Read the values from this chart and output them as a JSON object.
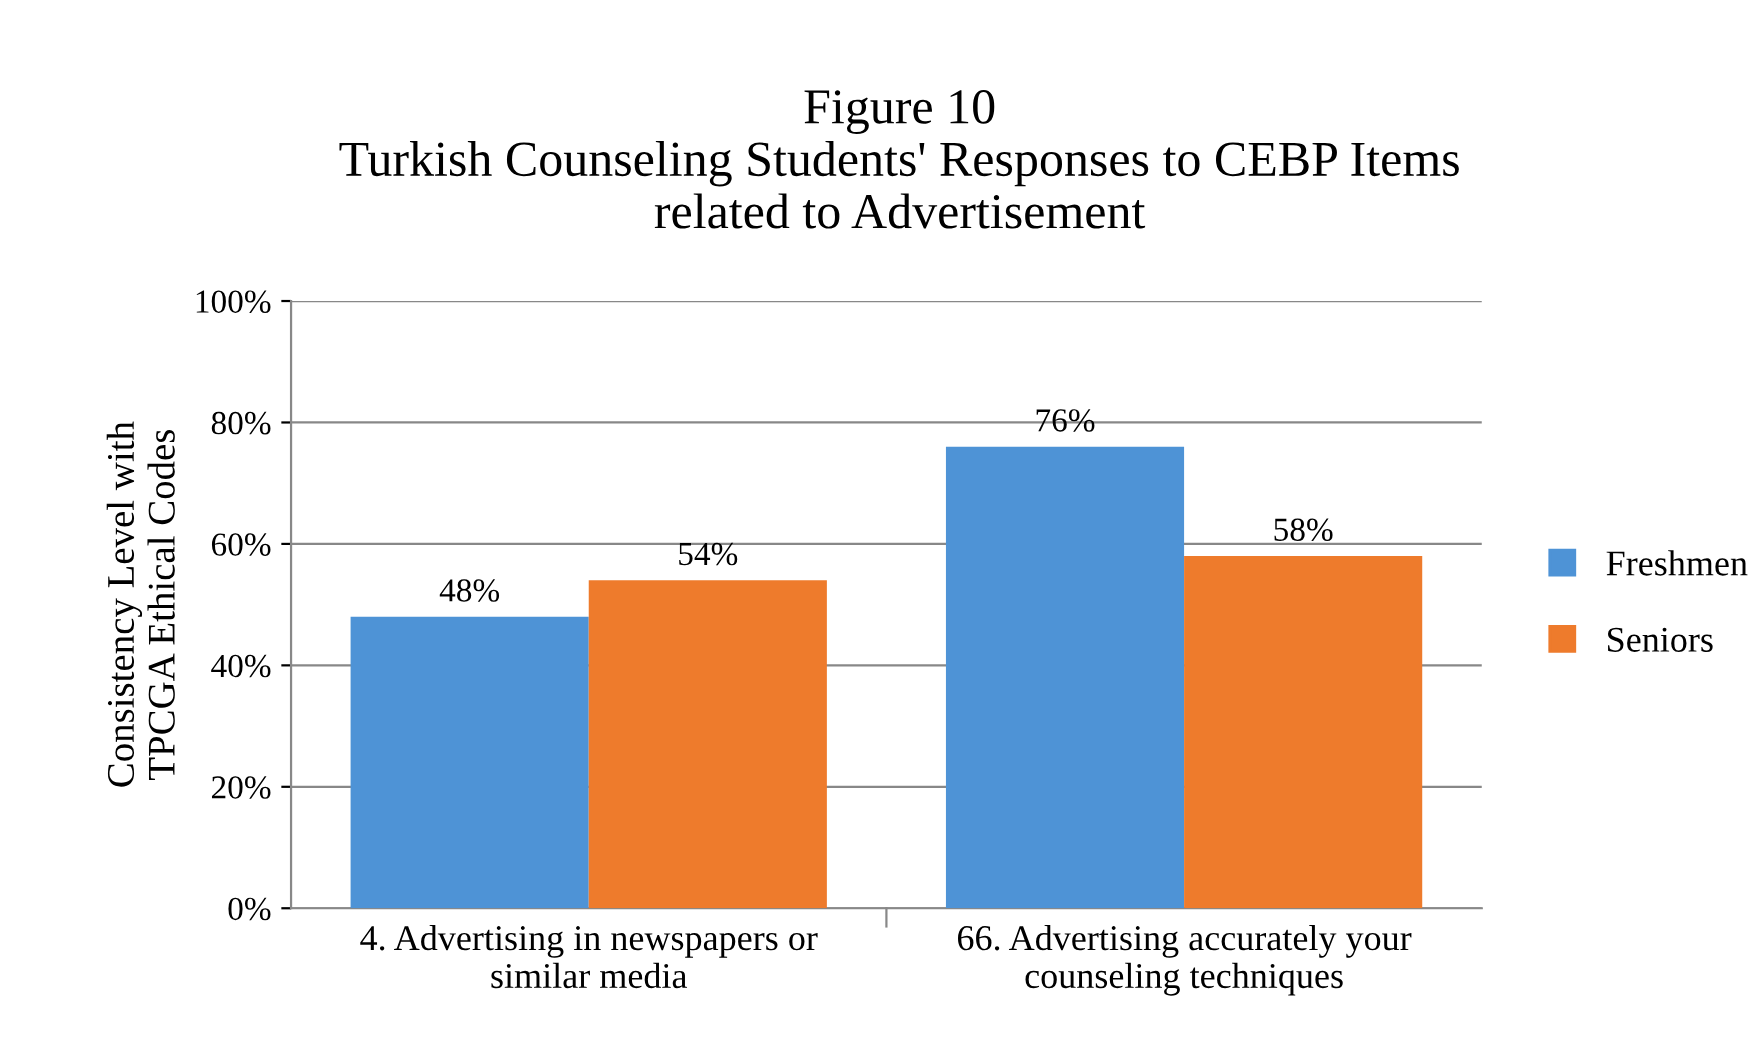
{
  "chart_data": {
    "type": "bar",
    "title": "Figure 10\nTurkish Counseling Students' Responses to CEBP Items\nrelated to Advertisement",
    "ylabel": "Consistency Level with\nTPCGA Ethical Codes",
    "categories": [
      "4. Advertising in newspapers or\nsimilar media",
      "66. Advertising accurately your\ncounseling techniques"
    ],
    "series": [
      {
        "name": "Freshmen",
        "color": "#4e93d6",
        "values": [
          48,
          76
        ],
        "value_labels": [
          "48%",
          "76%"
        ]
      },
      {
        "name": "Seniors",
        "color": "#ee7b2c",
        "values": [
          54,
          58
        ],
        "value_labels": [
          "54%",
          "58%"
        ]
      }
    ],
    "ylim": [
      0,
      100
    ],
    "yticks": [
      {
        "value": 0,
        "label": "0%"
      },
      {
        "value": 20,
        "label": "20%"
      },
      {
        "value": 40,
        "label": "40%"
      },
      {
        "value": 60,
        "label": "60%"
      },
      {
        "value": 80,
        "label": "80%"
      },
      {
        "value": 100,
        "label": "100%"
      }
    ],
    "grid": "y",
    "legend": "right"
  }
}
